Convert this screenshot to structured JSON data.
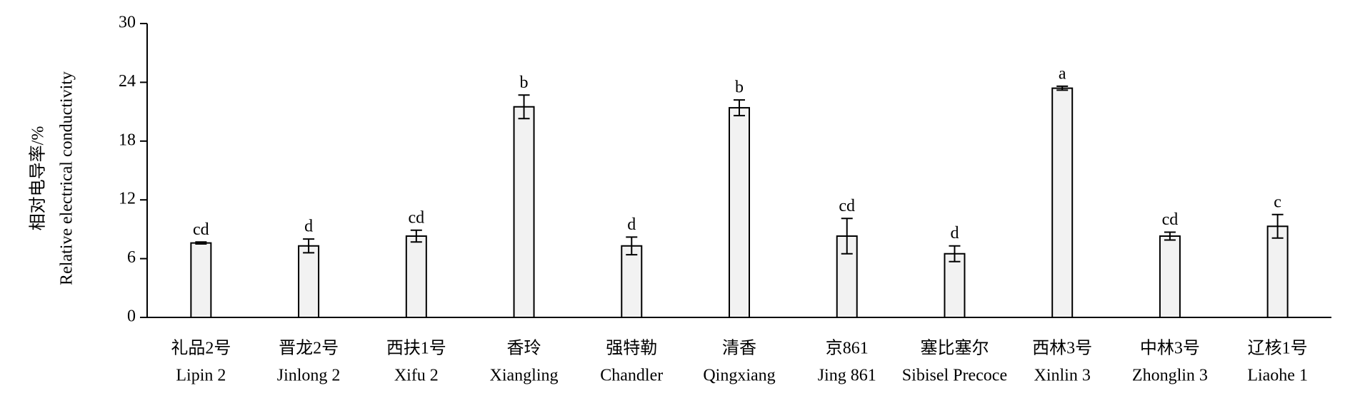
{
  "chart_data": {
    "type": "bar",
    "y_label": [
      "相对电导率/%",
      "Relative electrical conductivity"
    ],
    "categories": [
      "礼品2号",
      "晋龙2号",
      "西扶1号",
      "香玲",
      "强特勒",
      "清香",
      "京861",
      "塞比塞尔",
      "西林3号",
      "中林3号",
      "辽核1号"
    ],
    "categories_en": [
      "Lipin 2",
      "Jinlong 2",
      "Xifu 2",
      "Xiangling",
      "Chandler",
      "Qingxiang",
      "Jing 861",
      "Sibisel Precoce",
      "Xinlin 3",
      "Zhonglin 3",
      "Liaohe 1"
    ],
    "values": [
      7.6,
      7.3,
      8.3,
      21.5,
      7.3,
      21.4,
      8.3,
      6.5,
      23.4,
      8.3,
      9.3
    ],
    "errors": [
      0.1,
      0.7,
      0.6,
      1.2,
      0.9,
      0.8,
      1.8,
      0.8,
      0.2,
      0.4,
      1.2
    ],
    "letters": [
      "cd",
      "d",
      "cd",
      "b",
      "d",
      "b",
      "cd",
      "d",
      "a",
      "cd",
      "c"
    ],
    "color": "#f2f2f2",
    "ylim": [
      0,
      30
    ],
    "yticks": [
      0,
      6,
      12,
      18,
      24,
      30
    ],
    "grid": false
  }
}
